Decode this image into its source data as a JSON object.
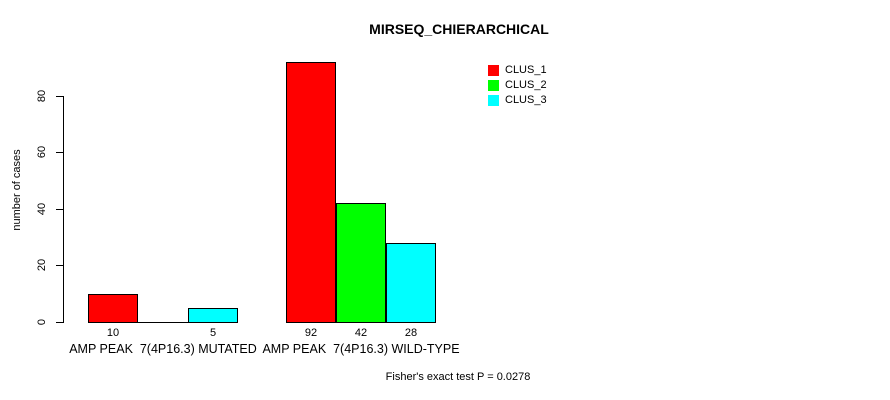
{
  "figure": {
    "background_color": "#FFFFFF",
    "text_color": "#000000"
  },
  "chart_data": {
    "type": "bar",
    "title": "MIRSEQ_CHIERARCHICAL",
    "ylabel": "number of cases",
    "xlabel": "",
    "ylim": [
      0,
      80
    ],
    "yticks": [
      0,
      20,
      40,
      60,
      80
    ],
    "grid": false,
    "categories": [
      "AMP PEAK  7(4P16.3) MUTATED",
      "AMP PEAK  7(4P16.3) WILD-TYPE"
    ],
    "series": [
      {
        "name": "CLUS_1",
        "color": "#FF0000",
        "values": [
          10,
          92
        ]
      },
      {
        "name": "CLUS_2",
        "color": "#00FF00",
        "values": [
          0,
          42
        ]
      },
      {
        "name": "CLUS_3",
        "color": "#00FFFF",
        "values": [
          5,
          28
        ]
      }
    ],
    "bar_value_labels": [
      [
        "10",
        "",
        "5"
      ],
      [
        "92",
        "42",
        "28"
      ]
    ],
    "bar_border_color": "#000000",
    "legend": {
      "position": "top-right",
      "entries": [
        "CLUS_1",
        "CLUS_2",
        "CLUS_3"
      ]
    },
    "annotation": "Fisher's exact test P = 0.0278"
  }
}
